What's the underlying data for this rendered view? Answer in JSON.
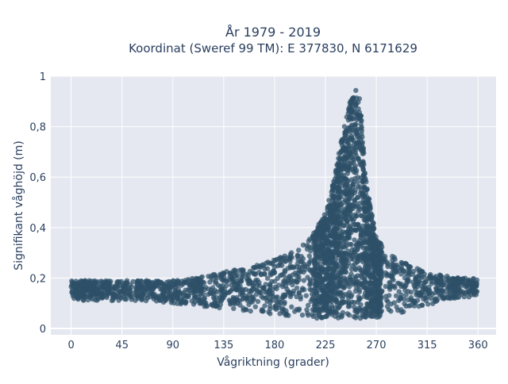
{
  "chart_data": {
    "type": "scatter",
    "title_line1": "År 1979 - 2019",
    "title_line2": "Koordinat (Sweref 99 TM): E 377830, N 6171629",
    "xlabel": "Vågriktning (grader)",
    "ylabel": "Signifikant våghöjd (m)",
    "xlim": [
      -18,
      376
    ],
    "ylim": [
      -0.025,
      1.0
    ],
    "x_ticks": [
      0,
      45,
      90,
      135,
      180,
      225,
      270,
      315,
      360
    ],
    "x_tick_labels": [
      "0",
      "45",
      "90",
      "135",
      "180",
      "225",
      "270",
      "315",
      "360"
    ],
    "y_ticks": [
      0,
      0.2,
      0.4,
      0.6,
      0.8,
      1
    ],
    "y_tick_labels": [
      "0",
      "0,2",
      "0,4",
      "0,6",
      "0,8",
      "1"
    ],
    "grid": true,
    "legend": "none",
    "point_color": "#2e5068",
    "plot_background": "#e5e8f0",
    "envelope": {
      "x": [
        0,
        10,
        30,
        50,
        70,
        90,
        110,
        130,
        150,
        170,
        190,
        205,
        215,
        225,
        232,
        238,
        244,
        248,
        252,
        256,
        260,
        265,
        270,
        280,
        290,
        300,
        315,
        330,
        345,
        360
      ],
      "y_min": [
        0.12,
        0.11,
        0.11,
        0.11,
        0.11,
        0.1,
        0.09,
        0.08,
        0.07,
        0.06,
        0.05,
        0.04,
        0.04,
        0.04,
        0.04,
        0.04,
        0.04,
        0.04,
        0.04,
        0.04,
        0.04,
        0.04,
        0.04,
        0.05,
        0.06,
        0.07,
        0.09,
        0.11,
        0.12,
        0.13
      ],
      "y_max": [
        0.19,
        0.19,
        0.19,
        0.19,
        0.19,
        0.19,
        0.2,
        0.22,
        0.24,
        0.26,
        0.29,
        0.33,
        0.38,
        0.46,
        0.58,
        0.72,
        0.85,
        0.92,
        0.95,
        0.9,
        0.62,
        0.48,
        0.36,
        0.3,
        0.27,
        0.25,
        0.22,
        0.21,
        0.2,
        0.2
      ]
    }
  }
}
